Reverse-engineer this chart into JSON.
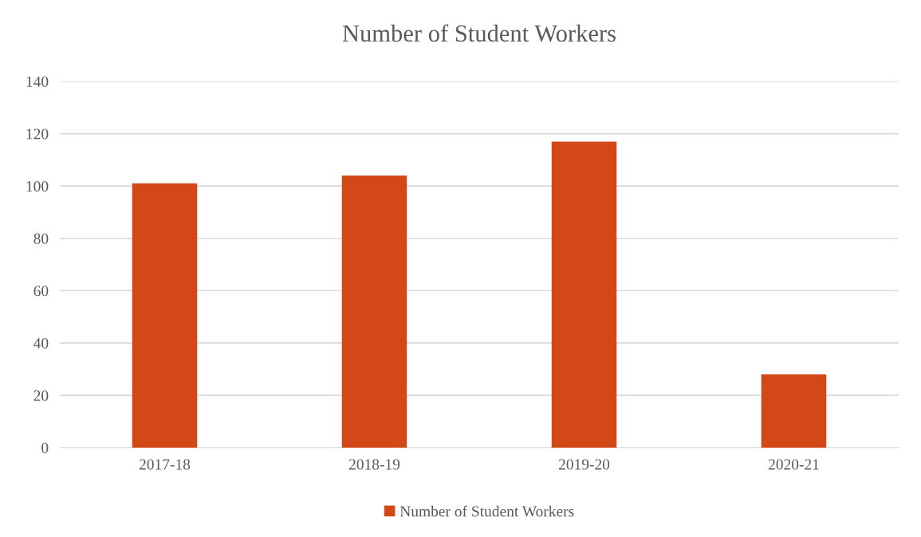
{
  "chart_data": {
    "type": "bar",
    "title": "Number of Student Workers",
    "categories": [
      "2017-18",
      "2018-19",
      "2019-20",
      "2020-21"
    ],
    "series": [
      {
        "name": "Number of Student Workers",
        "color": "#d34817",
        "values": [
          101,
          104,
          117,
          28
        ]
      }
    ],
    "ylim": [
      0,
      140
    ],
    "yticks": [
      0,
      20,
      40,
      60,
      80,
      100,
      120,
      140
    ],
    "grid": "y",
    "legend": "bottom"
  }
}
